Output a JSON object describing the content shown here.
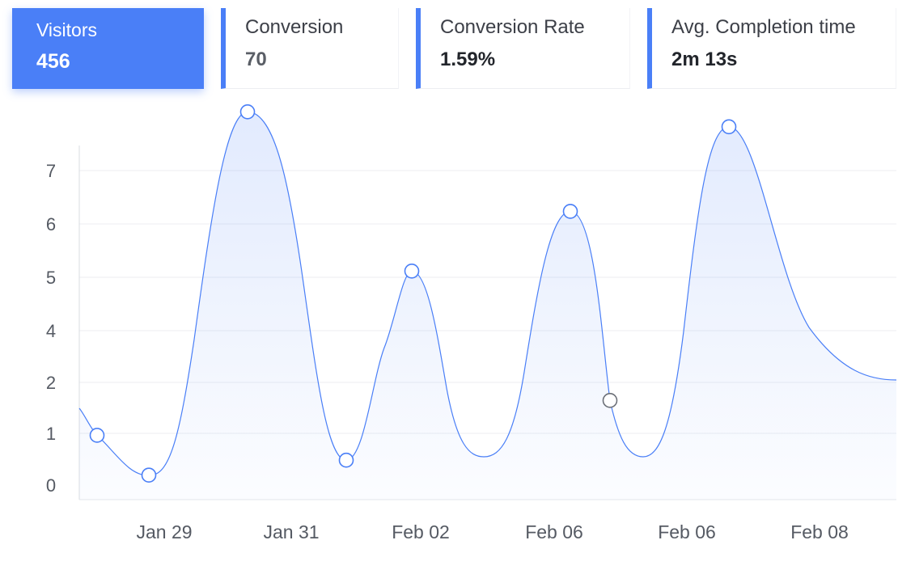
{
  "stats": [
    {
      "label": "Visitors",
      "value": "456",
      "active": true
    },
    {
      "label": "Conversion",
      "value": "70",
      "active": false
    },
    {
      "label": "Conversion Rate",
      "value": "1.59%",
      "active": false
    },
    {
      "label": "Avg. Completion time",
      "value": "2m 13s",
      "active": false
    }
  ],
  "colors": {
    "accent": "#4a7ff7",
    "line": "#4a7ff7",
    "grid": "#eceef2",
    "axis_text": "#555a63",
    "hover_marker": "#6b6f77"
  },
  "chart_data": {
    "type": "area",
    "title": "",
    "xlabel": "",
    "ylabel": "",
    "y_tick_labels": [
      "0",
      "1",
      "2",
      "4",
      "5",
      "6",
      "7"
    ],
    "x_tick_labels": [
      "Jan 29",
      "Jan 31",
      "Feb 02",
      "Feb 06",
      "Feb 06",
      "Feb 08"
    ],
    "grid": true,
    "series": [
      {
        "values": [
          1.0,
          0.2,
          7.5,
          0.5,
          4.3,
          5.5,
          1.7,
          7.2
        ],
        "highlighted_point_index": 6
      }
    ]
  }
}
